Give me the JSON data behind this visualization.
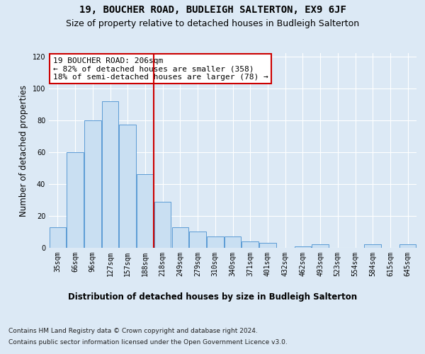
{
  "title": "19, BOUCHER ROAD, BUDLEIGH SALTERTON, EX9 6JF",
  "subtitle": "Size of property relative to detached houses in Budleigh Salterton",
  "xlabel": "Distribution of detached houses by size in Budleigh Salterton",
  "ylabel": "Number of detached properties",
  "categories": [
    "35sqm",
    "66sqm",
    "96sqm",
    "127sqm",
    "157sqm",
    "188sqm",
    "218sqm",
    "249sqm",
    "279sqm",
    "310sqm",
    "340sqm",
    "371sqm",
    "401sqm",
    "432sqm",
    "462sqm",
    "493sqm",
    "523sqm",
    "554sqm",
    "584sqm",
    "615sqm",
    "645sqm"
  ],
  "values": [
    13,
    60,
    80,
    92,
    77,
    46,
    29,
    13,
    10,
    7,
    7,
    4,
    3,
    0,
    1,
    2,
    0,
    0,
    2,
    0,
    2
  ],
  "bar_color": "#c9dff2",
  "bar_edge_color": "#5b9bd5",
  "vline_x": 5.5,
  "vline_color": "#cc0000",
  "annotation_text": "19 BOUCHER ROAD: 206sqm\n← 82% of detached houses are smaller (358)\n18% of semi-detached houses are larger (78) →",
  "annotation_box_color": "#ffffff",
  "annotation_box_edge_color": "#cc0000",
  "ylim": [
    0,
    122
  ],
  "yticks": [
    0,
    20,
    40,
    60,
    80,
    100,
    120
  ],
  "footer_line1": "Contains HM Land Registry data © Crown copyright and database right 2024.",
  "footer_line2": "Contains public sector information licensed under the Open Government Licence v3.0.",
  "background_color": "#dce9f5",
  "plot_background_color": "#dce9f5",
  "title_fontsize": 10,
  "subtitle_fontsize": 9,
  "axis_label_fontsize": 8.5,
  "tick_fontsize": 7,
  "annotation_fontsize": 8,
  "footer_fontsize": 6.5
}
